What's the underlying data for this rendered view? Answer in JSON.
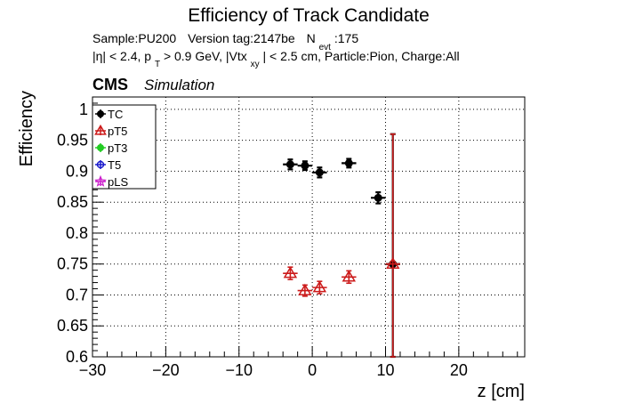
{
  "chart_data": {
    "type": "scatter",
    "title": "Efficiency of Track Candidate",
    "subtitle_line1": {
      "sample": "Sample:PU200",
      "version": "Version tag:2147be",
      "nevt_prefix": "N",
      "nevt_sub": "evt",
      "nevt_value": ":175"
    },
    "subtitle_line2": {
      "part1": "|η| < 2.4, p",
      "part1_sub": "T",
      "part2": " > 0.9 GeV, |Vtx",
      "part2_sub": "xy",
      "part3": "| < 2.5 cm, Particle:Pion, Charge:All"
    },
    "cms_label": "CMS",
    "simulation_label": "Simulation",
    "xlabel": "z [cm]",
    "ylabel": "Efficiency",
    "xlim": [
      -30,
      29
    ],
    "ylim": [
      0.6,
      1.02
    ],
    "grid": true,
    "legend_position": "top-left",
    "x_ticks": [
      -30,
      -20,
      -10,
      0,
      10,
      20
    ],
    "x_tick_labels": [
      "−30",
      "−20",
      "−10",
      "0",
      "10",
      "20"
    ],
    "y_ticks": [
      0.6,
      0.65,
      0.7,
      0.75,
      0.8,
      0.85,
      0.9,
      0.95,
      1
    ],
    "y_tick_labels": [
      "0.6",
      "0.65",
      "0.7",
      "0.75",
      "0.8",
      "0.85",
      "0.9",
      "0.95",
      "1"
    ],
    "series": [
      {
        "name": "TC",
        "color": "#000000",
        "marker": "filled-circle",
        "points": [
          {
            "x": -3,
            "y": 0.911,
            "xerr": 1,
            "yerr_low": 0.008,
            "yerr_high": 0.008
          },
          {
            "x": -1,
            "y": 0.909,
            "xerr": 1,
            "yerr_low": 0.007,
            "yerr_high": 0.007
          },
          {
            "x": 1,
            "y": 0.898,
            "xerr": 1,
            "yerr_low": 0.008,
            "yerr_high": 0.008
          },
          {
            "x": 5,
            "y": 0.913,
            "xerr": 1,
            "yerr_low": 0.007,
            "yerr_high": 0.007
          },
          {
            "x": 9,
            "y": 0.857,
            "xerr": 1,
            "yerr_low": 0.009,
            "yerr_high": 0.009
          },
          {
            "x": 11,
            "y": 0.75,
            "xerr": 1,
            "yerr_low": 0.15,
            "yerr_high": 0.21
          }
        ]
      },
      {
        "name": "pT5",
        "color": "#cc1a1a",
        "marker": "open-triangle",
        "points": [
          {
            "x": -3,
            "y": 0.735,
            "xerr": 1,
            "yerr_low": 0.01,
            "yerr_high": 0.01
          },
          {
            "x": -1,
            "y": 0.707,
            "xerr": 1,
            "yerr_low": 0.009,
            "yerr_high": 0.009
          },
          {
            "x": 1,
            "y": 0.712,
            "xerr": 1,
            "yerr_low": 0.01,
            "yerr_high": 0.01
          },
          {
            "x": 5,
            "y": 0.729,
            "xerr": 1,
            "yerr_low": 0.01,
            "yerr_high": 0.01
          },
          {
            "x": 11,
            "y": 0.75,
            "xerr": 1,
            "yerr_low": 0.15,
            "yerr_high": 0.21
          }
        ]
      },
      {
        "name": "pT3",
        "color": "#22cc22",
        "marker": "filled-circle",
        "points": []
      },
      {
        "name": "T5",
        "color": "#1a1acc",
        "marker": "open-circle",
        "points": []
      },
      {
        "name": "pLS",
        "color": "#cc22cc",
        "marker": "open-star",
        "points": []
      }
    ]
  }
}
